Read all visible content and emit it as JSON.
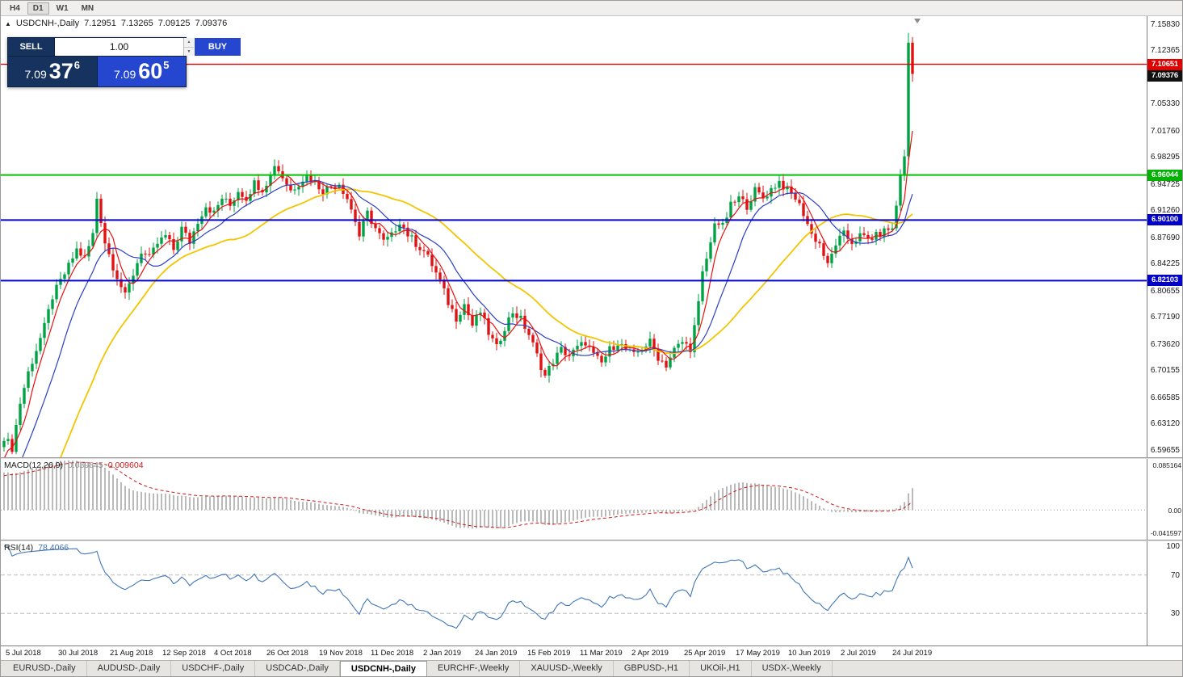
{
  "toolbar": {
    "timeframes": [
      "H4",
      "D1",
      "W1",
      "MN"
    ],
    "active_timeframe": "D1"
  },
  "chart_header": {
    "symbol": "USDCNH-,Daily",
    "open": "7.12951",
    "high": "7.13265",
    "low": "7.09125",
    "close": "7.09376"
  },
  "trade_panel": {
    "sell_label": "SELL",
    "buy_label": "BUY",
    "volume": "1.00",
    "sell_price": {
      "prefix": "7.09",
      "digits": "37",
      "sup": "6"
    },
    "buy_price": {
      "prefix": "7.09",
      "digits": "60",
      "sup": "5"
    },
    "sell_color": "#16335f",
    "buy_color": "#2547cf"
  },
  "price_axis": {
    "labels": [
      "7.15830",
      "7.12365",
      "7.05330",
      "7.01760",
      "6.98295",
      "6.94725",
      "6.91260",
      "6.87690",
      "6.84225",
      "6.80655",
      "6.77190",
      "6.73620",
      "6.70155",
      "6.66585",
      "6.63120",
      "6.59655"
    ],
    "badges": [
      {
        "value": "7.10651",
        "color": "#e00000"
      },
      {
        "value": "7.09376",
        "color": "#111111"
      },
      {
        "value": "6.96044",
        "color": "#00b300"
      },
      {
        "value": "6.90100",
        "color": "#0000c8"
      },
      {
        "value": "6.82103",
        "color": "#0000c8"
      }
    ]
  },
  "chart_data": {
    "type": "candlestick",
    "symbol": "USDCNH",
    "timeframe": "Daily",
    "current_ohlc": {
      "open": 7.12951,
      "high": 7.13265,
      "low": 7.09125,
      "close": 7.09376
    },
    "price_max_view": 7.17,
    "price_min_view": 6.588,
    "num_candles": 226,
    "noise": 0.011,
    "warmup_bars": 30,
    "warmup_slope": 0.012,
    "up_color": "#00a344",
    "down_color": "#e01212",
    "levels": [
      {
        "price": 7.10651,
        "color": "#e00000",
        "width": 1.4
      },
      {
        "price": 6.96044,
        "color": "#00c000",
        "width": 2
      },
      {
        "price": 6.901,
        "color": "#0000d0",
        "width": 2
      },
      {
        "price": 6.82103,
        "color": "#0000d0",
        "width": 2
      }
    ],
    "ma": [
      {
        "period": 34,
        "color": "#f2c500",
        "width": 1.8
      },
      {
        "period": 13,
        "color": "#2b3fc4",
        "width": 1.2
      },
      {
        "period": 5,
        "color": "#e81010",
        "width": 1.2
      }
    ],
    "close_waypoints": [
      [
        0,
        6.615
      ],
      [
        2,
        6.6
      ],
      [
        4,
        6.66
      ],
      [
        6,
        6.7
      ],
      [
        8,
        6.73
      ],
      [
        10,
        6.76
      ],
      [
        12,
        6.8
      ],
      [
        14,
        6.82
      ],
      [
        16,
        6.84
      ],
      [
        18,
        6.862
      ],
      [
        20,
        6.85
      ],
      [
        22,
        6.882
      ],
      [
        23,
        6.93
      ],
      [
        25,
        6.872
      ],
      [
        27,
        6.84
      ],
      [
        30,
        6.8
      ],
      [
        32,
        6.83
      ],
      [
        34,
        6.86
      ],
      [
        36,
        6.85
      ],
      [
        38,
        6.87
      ],
      [
        40,
        6.88
      ],
      [
        42,
        6.862
      ],
      [
        44,
        6.89
      ],
      [
        46,
        6.872
      ],
      [
        48,
        6.9
      ],
      [
        50,
        6.92
      ],
      [
        52,
        6.91
      ],
      [
        54,
        6.93
      ],
      [
        56,
        6.92
      ],
      [
        58,
        6.94
      ],
      [
        60,
        6.93
      ],
      [
        62,
        6.95
      ],
      [
        64,
        6.942
      ],
      [
        66,
        6.96
      ],
      [
        67,
        6.975
      ],
      [
        69,
        6.958
      ],
      [
        71,
        6.94
      ],
      [
        73,
        6.95
      ],
      [
        75,
        6.96
      ],
      [
        77,
        6.95
      ],
      [
        79,
        6.94
      ],
      [
        81,
        6.946
      ],
      [
        83,
        6.95
      ],
      [
        85,
        6.93
      ],
      [
        87,
        6.9
      ],
      [
        88,
        6.88
      ],
      [
        90,
        6.91
      ],
      [
        92,
        6.89
      ],
      [
        94,
        6.872
      ],
      [
        96,
        6.88
      ],
      [
        98,
        6.9
      ],
      [
        100,
        6.882
      ],
      [
        102,
        6.87
      ],
      [
        104,
        6.86
      ],
      [
        106,
        6.842
      ],
      [
        108,
        6.82
      ],
      [
        110,
        6.792
      ],
      [
        112,
        6.772
      ],
      [
        114,
        6.79
      ],
      [
        116,
        6.762
      ],
      [
        118,
        6.78
      ],
      [
        120,
        6.752
      ],
      [
        122,
        6.732
      ],
      [
        124,
        6.76
      ],
      [
        126,
        6.78
      ],
      [
        128,
        6.77
      ],
      [
        130,
        6.75
      ],
      [
        132,
        6.722
      ],
      [
        134,
        6.695
      ],
      [
        136,
        6.715
      ],
      [
        138,
        6.73
      ],
      [
        140,
        6.722
      ],
      [
        142,
        6.732
      ],
      [
        144,
        6.74
      ],
      [
        146,
        6.722
      ],
      [
        148,
        6.712
      ],
      [
        150,
        6.73
      ],
      [
        152,
        6.74
      ],
      [
        154,
        6.73
      ],
      [
        156,
        6.722
      ],
      [
        158,
        6.732
      ],
      [
        160,
        6.74
      ],
      [
        162,
        6.72
      ],
      [
        164,
        6.71
      ],
      [
        166,
        6.73
      ],
      [
        168,
        6.74
      ],
      [
        170,
        6.732
      ],
      [
        171,
        6.76
      ],
      [
        172,
        6.79
      ],
      [
        173,
        6.83
      ],
      [
        175,
        6.87
      ],
      [
        176,
        6.9
      ],
      [
        178,
        6.892
      ],
      [
        180,
        6.92
      ],
      [
        182,
        6.93
      ],
      [
        184,
        6.92
      ],
      [
        186,
        6.94
      ],
      [
        188,
        6.93
      ],
      [
        190,
        6.942
      ],
      [
        192,
        6.952
      ],
      [
        194,
        6.94
      ],
      [
        196,
        6.93
      ],
      [
        198,
        6.91
      ],
      [
        200,
        6.882
      ],
      [
        202,
        6.87
      ],
      [
        204,
        6.84
      ],
      [
        206,
        6.87
      ],
      [
        208,
        6.882
      ],
      [
        210,
        6.872
      ],
      [
        212,
        6.88
      ],
      [
        214,
        6.876
      ],
      [
        216,
        6.88
      ],
      [
        218,
        6.886
      ],
      [
        220,
        6.89
      ],
      [
        221,
        6.92
      ],
      [
        222,
        6.96
      ],
      [
        223,
        6.985
      ],
      [
        224,
        7.135
      ],
      [
        225,
        7.09376
      ]
    ]
  },
  "macd": {
    "label": "MACD(12,26,9)",
    "value_main": "0.039845",
    "value_signal": "0.009604",
    "axis_labels": [
      "0.085164",
      "0.00",
      "-0.041597"
    ],
    "axis_max": 0.095,
    "axis_min": -0.055
  },
  "rsi": {
    "label": "RSI(14)",
    "value": "78.4066",
    "axis_labels": [
      "100",
      "70",
      "30"
    ],
    "levels": [
      70,
      30
    ]
  },
  "date_axis": {
    "labels": [
      "5 Jul 2018",
      "30 Jul 2018",
      "21 Aug 2018",
      "12 Sep 2018",
      "4 Oct 2018",
      "26 Oct 2018",
      "19 Nov 2018",
      "11 Dec 2018",
      "2 Jan 2019",
      "24 Jan 2019",
      "15 Feb 2019",
      "11 Mar 2019",
      "2 Apr 2019",
      "25 Apr 2019",
      "17 May 2019",
      "10 Jun 2019",
      "2 Jul 2019",
      "24 Jul 2019"
    ]
  },
  "tabs": {
    "items": [
      "EURUSD-,Daily",
      "AUDUSD-,Daily",
      "USDCHF-,Daily",
      "USDCAD-,Daily",
      "USDCNH-,Daily",
      "EURCHF-,Weekly",
      "XAUUSD-,Weekly",
      "GBPUSD-,H1",
      "UKOil-,H1",
      "USDX-,Weekly"
    ],
    "active": "USDCNH-,Daily"
  }
}
